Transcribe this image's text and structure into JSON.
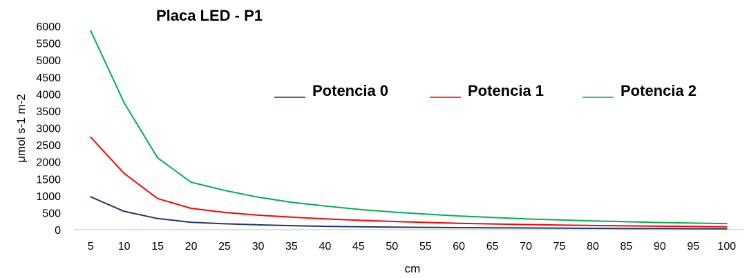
{
  "chart_data": {
    "type": "line",
    "title": "Placa LED - P1",
    "xlabel": "cm",
    "ylabel": "μmol s-1 m-2",
    "x": [
      "5",
      "10",
      "15",
      "20",
      "25",
      "30",
      "35",
      "40",
      "45",
      "50",
      "55",
      "60",
      "65",
      "70",
      "75",
      "80",
      "85",
      "90",
      "95",
      "100"
    ],
    "yticks": [
      "0",
      "500",
      "1000",
      "1500",
      "2000",
      "2500",
      "3000",
      "3500",
      "4000",
      "4500",
      "5000",
      "5500",
      "6000"
    ],
    "ylim": [
      0,
      6000
    ],
    "grid": false,
    "legend_position": "upper-right",
    "series": [
      {
        "name": "Potencia 0",
        "color": "#1f3864",
        "values": [
          970,
          540,
          330,
          220,
          175,
          145,
          120,
          100,
          88,
          78,
          70,
          62,
          55,
          50,
          45,
          41,
          37,
          34,
          31,
          29
        ]
      },
      {
        "name": "Potencia 1",
        "color": "#ff0000",
        "values": [
          2730,
          1660,
          920,
          630,
          510,
          430,
          370,
          320,
          280,
          245,
          215,
          190,
          170,
          152,
          138,
          125,
          113,
          103,
          95,
          88
        ]
      },
      {
        "name": "Potencia 2",
        "color": "#00b050",
        "values": [
          5870,
          3740,
          2120,
          1400,
          1160,
          960,
          810,
          700,
          600,
          525,
          460,
          405,
          360,
          320,
          288,
          260,
          235,
          212,
          195,
          180
        ]
      }
    ]
  }
}
